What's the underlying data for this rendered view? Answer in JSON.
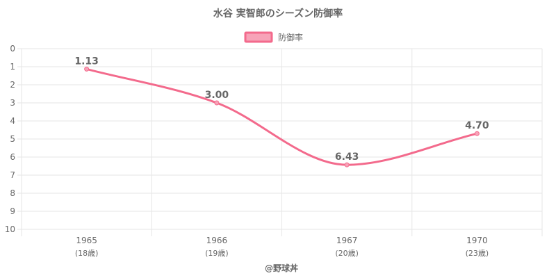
{
  "chart_data": {
    "type": "line",
    "title": "水谷 実智郎のシーズン防御率",
    "legend": {
      "position": "top",
      "label": "防御率"
    },
    "categories": [
      "1965",
      "1966",
      "1967",
      "1970"
    ],
    "category_sublabels": [
      "(18歳)",
      "(19歳)",
      "(20歳)",
      "(23歳)"
    ],
    "series": [
      {
        "name": "防御率",
        "values": [
          1.13,
          3.0,
          6.43,
          4.7
        ],
        "labels": [
          "1.13",
          "3.00",
          "6.43",
          "4.70"
        ]
      }
    ],
    "y_ticks": [
      "0",
      "1",
      "2",
      "3",
      "4",
      "5",
      "6",
      "7",
      "8",
      "9",
      "10"
    ],
    "ylim": [
      0,
      10
    ],
    "y_reversed": true,
    "grid": true,
    "colors": {
      "line": "#f36a8c",
      "fill": "#f7a3b8",
      "grid": "#e6e6e6",
      "text": "#666666"
    }
  },
  "credit": "@野球丼"
}
